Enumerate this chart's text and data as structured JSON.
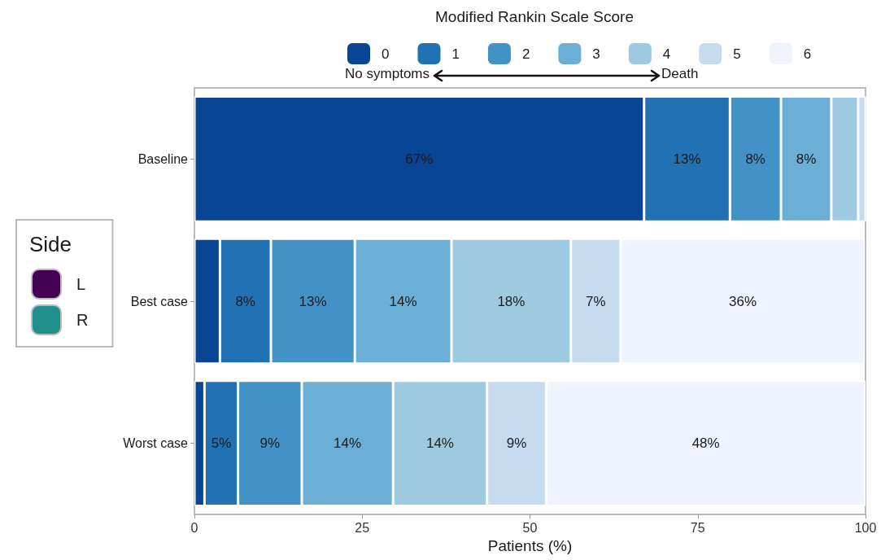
{
  "chart_data": {
    "type": "bar",
    "orientation": "horizontal",
    "stacked": true,
    "legend_title": "Modified Rankin Scale Score",
    "xlabel": "Patients (%)",
    "categories": [
      "Baseline",
      "Best case",
      "Worst case"
    ],
    "series": [
      {
        "name": "0",
        "color": "#084594",
        "values": [
          67.0,
          3.8,
          1.5
        ],
        "value_labels": [
          "67%",
          null,
          null
        ]
      },
      {
        "name": "1",
        "color": "#2171b5",
        "values": [
          12.8,
          7.6,
          5.0
        ],
        "value_labels": [
          "13%",
          "8%",
          "5%"
        ]
      },
      {
        "name": "2",
        "color": "#4292c6",
        "values": [
          7.6,
          12.5,
          9.5
        ],
        "value_labels": [
          "8%",
          "13%",
          "9%"
        ]
      },
      {
        "name": "3",
        "color": "#6baed6",
        "values": [
          7.5,
          14.4,
          13.6
        ],
        "value_labels": [
          "8%",
          "14%",
          "14%"
        ]
      },
      {
        "name": "4",
        "color": "#9ecae1",
        "values": [
          4.0,
          17.8,
          14.0
        ],
        "value_labels": [
          null,
          "18%",
          "14%"
        ]
      },
      {
        "name": "5",
        "color": "#c6dbef",
        "values": [
          1.1,
          7.4,
          8.8
        ],
        "value_labels": [
          null,
          "7%",
          "9%"
        ]
      },
      {
        "name": "6",
        "color": "#eff3ff",
        "values": [
          0,
          36.4,
          47.6
        ],
        "value_labels": [
          null,
          "36%",
          "48%"
        ]
      },
      {
        "name": "L",
        "color": "#440154",
        "values": [
          null,
          null,
          null
        ]
      },
      {
        "name": "R",
        "color": "#21908c",
        "values": [
          null,
          null,
          null
        ]
      }
    ],
    "xlim": [
      0,
      100
    ],
    "xticks": [
      0,
      25,
      50,
      75,
      100
    ],
    "annotations": [
      "No symptoms",
      "Death",
      "Side"
    ],
    "grid": false,
    "legend": "top"
  }
}
